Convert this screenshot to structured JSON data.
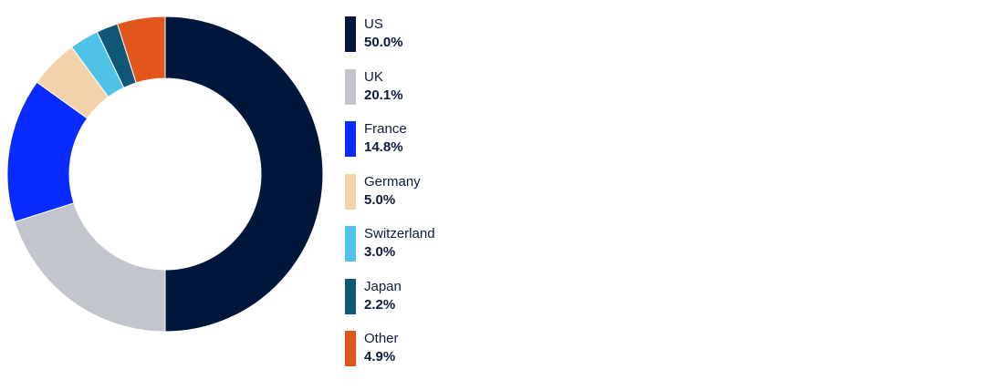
{
  "chart_data": {
    "type": "pie",
    "variant": "donut",
    "legend_position": "right",
    "slices": [
      {
        "name": "US",
        "value": 50.0,
        "label": "50.0%",
        "color": "#00163a"
      },
      {
        "name": "UK",
        "value": 20.1,
        "label": "20.1%",
        "color": "#c2c5cb"
      },
      {
        "name": "France",
        "value": 14.8,
        "label": "14.8%",
        "color": "#0a2bff"
      },
      {
        "name": "Germany",
        "value": 5.0,
        "label": "5.0%",
        "color": "#f4d2a9"
      },
      {
        "name": "Switzerland",
        "value": 3.0,
        "label": "3.0%",
        "color": "#4fc3e6"
      },
      {
        "name": "Japan",
        "value": 2.2,
        "label": "2.2%",
        "color": "#0e5776"
      },
      {
        "name": "Other",
        "value": 4.9,
        "label": "4.9%",
        "color": "#e0561b"
      }
    ]
  }
}
